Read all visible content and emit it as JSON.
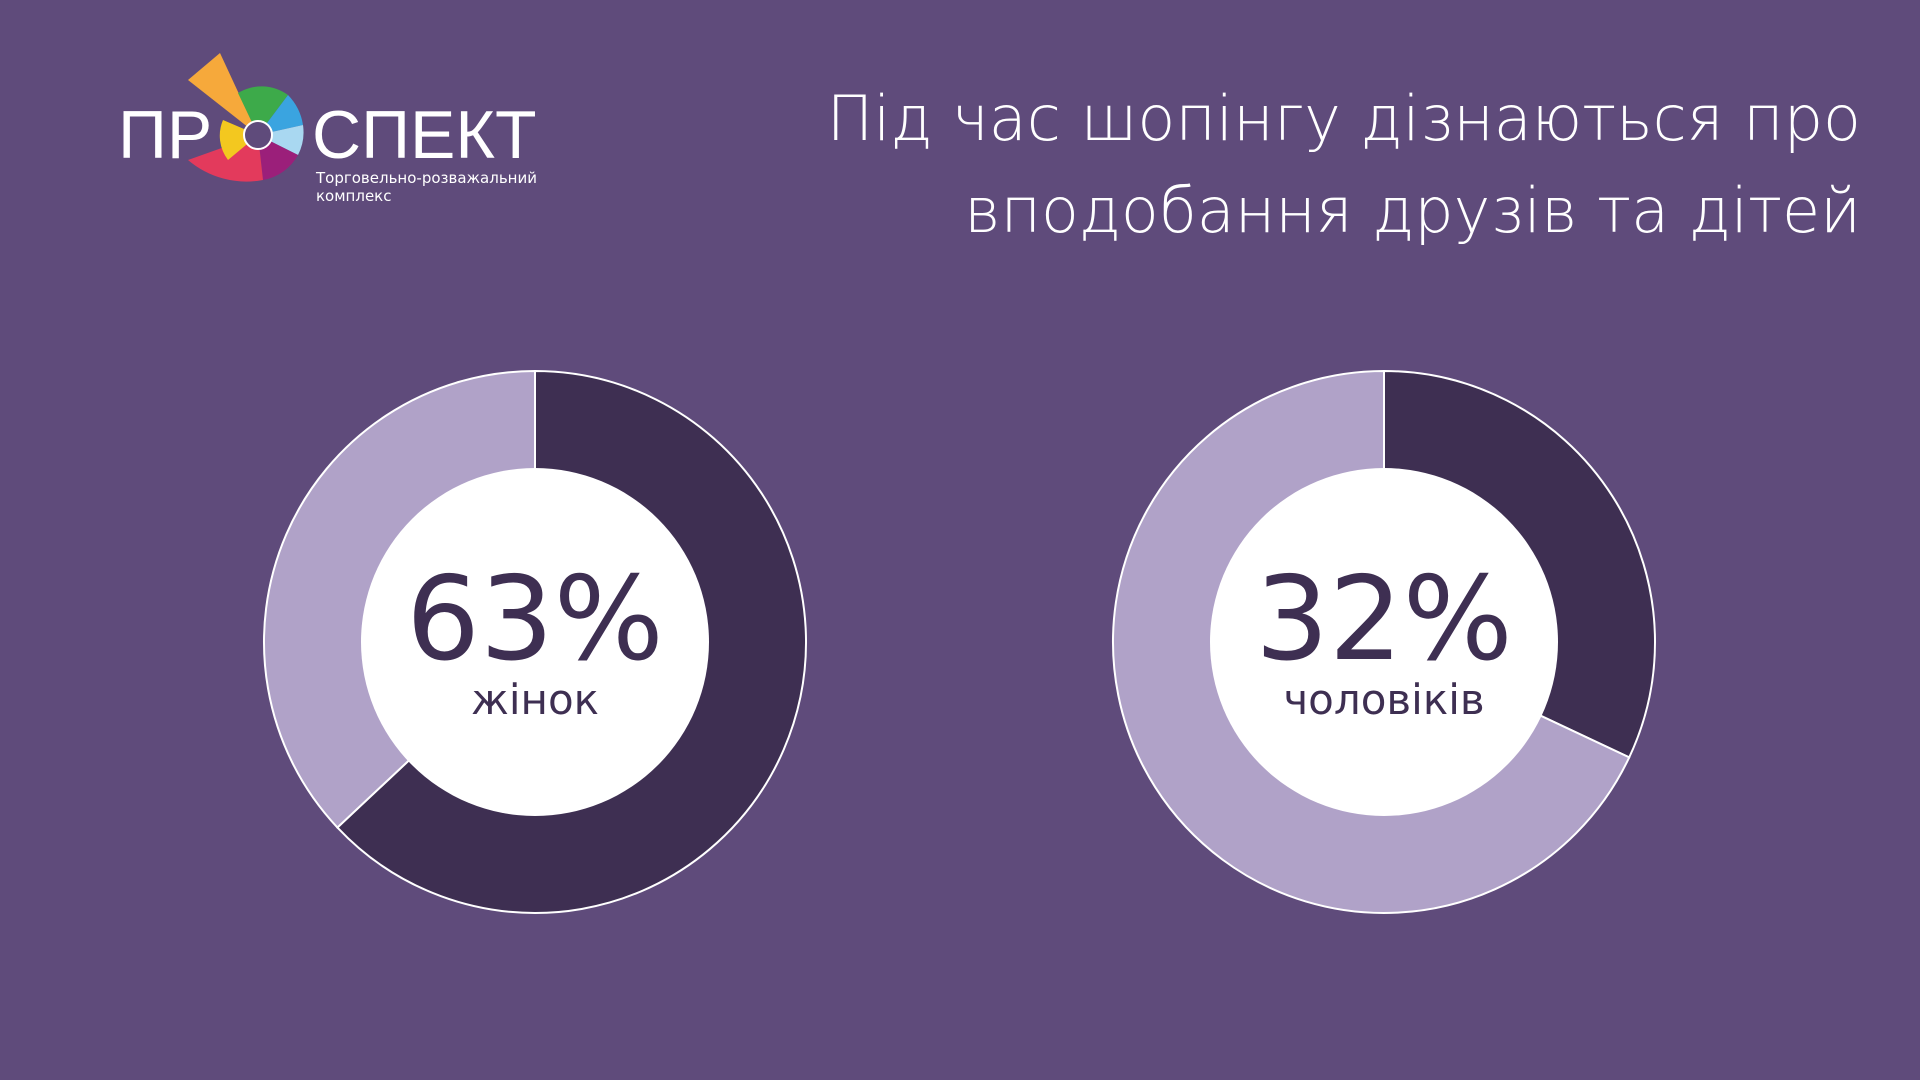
{
  "logo": {
    "text_left": "ПР",
    "text_right": "СПЕКТ",
    "tagline_lines": [
      "Торговельно-розважальний",
      "комплекс"
    ]
  },
  "title_lines": [
    "Під час шопінгу дізнаються про",
    "вподобання друзів та дітей"
  ],
  "chart_data": [
    {
      "type": "donut",
      "categories": [
        null,
        null
      ],
      "values": [
        63,
        37
      ],
      "value_labels": [
        "63%",
        null
      ],
      "colors": [
        "#3e2f52",
        "#b0a2c8"
      ],
      "label": "жінок"
    },
    {
      "type": "donut",
      "categories": [
        null,
        null
      ],
      "values": [
        32,
        68
      ],
      "value_labels": [
        "32%",
        null
      ],
      "colors": [
        "#3e2f52",
        "#b0a2c8"
      ],
      "label": "чоловіків"
    }
  ]
}
